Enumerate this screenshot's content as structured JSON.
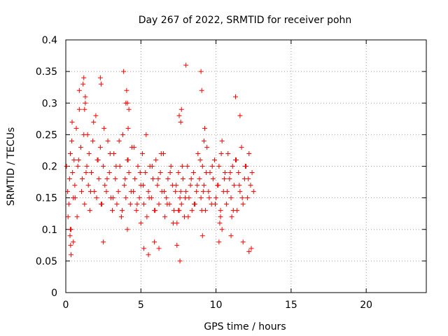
{
  "chart_data": {
    "type": "scatter",
    "title": "Day 267 of 2022, SRMTID for receiver pohn",
    "xlabel": "GPS time / hours",
    "ylabel": "SRMTID / TECUs",
    "xlim": [
      0,
      24
    ],
    "ylim": [
      0,
      0.4
    ],
    "x_ticks": [
      0,
      5,
      10,
      15,
      20
    ],
    "x_tick_labels": [
      "0",
      "5",
      "10",
      "15",
      "20"
    ],
    "y_ticks": [
      0,
      0.05,
      0.1,
      0.15,
      0.2,
      0.25,
      0.3,
      0.35,
      0.4
    ],
    "y_tick_labels": [
      "0",
      "0.05",
      "0.1",
      "0.15",
      "0.2",
      "0.25",
      "0.3",
      "0.35",
      "0.4"
    ],
    "grid": true,
    "marker": "plus",
    "color": "#ff0000",
    "series": [
      {
        "name": "SRMTID",
        "x": [
          0.05,
          0.12,
          0.2,
          0.25,
          0.3,
          0.35,
          0.4,
          0.45,
          0.5,
          0.55,
          0.6,
          0.7,
          0.75,
          0.8,
          0.9,
          1.0,
          1.05,
          1.1,
          1.2,
          1.25,
          1.3,
          1.4,
          1.5,
          1.55,
          1.6,
          1.7,
          1.8,
          1.9,
          2.0,
          2.05,
          2.1,
          2.2,
          2.3,
          2.4,
          2.5,
          2.6,
          2.7,
          2.8,
          2.9,
          3.0,
          3.1,
          3.2,
          3.3,
          3.4,
          3.5,
          3.6,
          3.7,
          3.8,
          3.9,
          4.0,
          4.1,
          4.2,
          4.3,
          4.4,
          4.5,
          4.6,
          4.7,
          4.8,
          4.9,
          5.0,
          5.1,
          5.2,
          5.3,
          5.4,
          5.5,
          5.6,
          5.7,
          5.8,
          5.9,
          6.0,
          6.1,
          6.2,
          6.3,
          6.4,
          6.5,
          6.6,
          6.7,
          6.8,
          6.9,
          7.0,
          7.1,
          7.2,
          7.3,
          7.4,
          7.5,
          7.6,
          7.7,
          7.8,
          7.9,
          8.0,
          8.1,
          8.2,
          8.3,
          8.4,
          8.5,
          8.6,
          8.7,
          8.8,
          8.9,
          9.0,
          9.1,
          9.2,
          9.3,
          9.4,
          9.5,
          9.6,
          9.7,
          9.8,
          9.9,
          10.0,
          10.1,
          10.2,
          10.3,
          10.4,
          10.5,
          10.6,
          10.7,
          10.8,
          10.9,
          11.0,
          11.1,
          11.2,
          11.3,
          11.4,
          11.5,
          11.6,
          11.7,
          11.8,
          11.9,
          12.0,
          12.1,
          12.2,
          12.3,
          12.4,
          12.5,
          0.15,
          0.28,
          0.42,
          0.62,
          0.85,
          1.15,
          1.35,
          1.45,
          1.65,
          1.85,
          2.15,
          2.35,
          2.55,
          2.75,
          2.95,
          3.15,
          3.35,
          3.55,
          3.75,
          3.95,
          4.15,
          4.35,
          4.55,
          4.75,
          4.95,
          5.15,
          5.35,
          5.55,
          5.75,
          5.95,
          6.15,
          6.35,
          6.55,
          6.75,
          6.95,
          7.15,
          7.35,
          7.55,
          7.65,
          7.75,
          7.95,
          8.15,
          8.35,
          8.55,
          8.75,
          8.95,
          9.05,
          9.15,
          9.35,
          9.55,
          9.75,
          9.95,
          10.15,
          10.35,
          10.55,
          10.75,
          10.95,
          11.15,
          11.35,
          11.55,
          11.75,
          11.95,
          12.15,
          12.35,
          0.3,
          0.5,
          1.3,
          2.5,
          3.85,
          4.0,
          4.05,
          4.1,
          5.0,
          7.5,
          7.6,
          7.7,
          8.0,
          9.0,
          9.05,
          9.1,
          10.3,
          10.4,
          11.0,
          11.05,
          11.6,
          11.8,
          12.2,
          0.32,
          0.35,
          5.2,
          5.5,
          5.9,
          6.2,
          7.4,
          7.55,
          7.65,
          10.2,
          10.25,
          0.9,
          1.2,
          1.25,
          2.3,
          2.35,
          4.1,
          4.15,
          4.2,
          9.2,
          9.25,
          11.3
        ],
        "y": [
          0.2,
          0.16,
          0.14,
          0.18,
          0.22,
          0.1,
          0.24,
          0.19,
          0.15,
          0.21,
          0.17,
          0.26,
          0.12,
          0.2,
          0.29,
          0.23,
          0.16,
          0.18,
          0.25,
          0.14,
          0.3,
          0.2,
          0.17,
          0.22,
          0.13,
          0.19,
          0.24,
          0.16,
          0.28,
          0.15,
          0.21,
          0.18,
          0.23,
          0.14,
          0.2,
          0.17,
          0.16,
          0.24,
          0.19,
          0.15,
          0.13,
          0.22,
          0.18,
          0.14,
          0.16,
          0.2,
          0.12,
          0.25,
          0.17,
          0.15,
          0.21,
          0.19,
          0.14,
          0.23,
          0.16,
          0.18,
          0.13,
          0.2,
          0.15,
          0.17,
          0.22,
          0.14,
          0.19,
          0.12,
          0.16,
          0.2,
          0.15,
          0.18,
          0.13,
          0.21,
          0.17,
          0.14,
          0.19,
          0.16,
          0.22,
          0.12,
          0.15,
          0.18,
          0.14,
          0.2,
          0.17,
          0.13,
          0.16,
          0.11,
          0.19,
          0.15,
          0.14,
          0.18,
          0.12,
          0.16,
          0.2,
          0.15,
          0.17,
          0.13,
          0.19,
          0.14,
          0.16,
          0.22,
          0.18,
          0.15,
          0.2,
          0.17,
          0.13,
          0.23,
          0.16,
          0.19,
          0.14,
          0.18,
          0.21,
          0.15,
          0.17,
          0.2,
          0.13,
          0.24,
          0.16,
          0.19,
          0.14,
          0.22,
          0.18,
          0.15,
          0.2,
          0.17,
          0.21,
          0.13,
          0.19,
          0.16,
          0.23,
          0.14,
          0.18,
          0.2,
          0.15,
          0.22,
          0.17,
          0.19,
          0.16,
          0.12,
          0.09,
          0.27,
          0.15,
          0.21,
          0.33,
          0.19,
          0.25,
          0.16,
          0.27,
          0.21,
          0.14,
          0.26,
          0.18,
          0.22,
          0.15,
          0.2,
          0.24,
          0.13,
          0.18,
          0.21,
          0.16,
          0.23,
          0.14,
          0.19,
          0.17,
          0.25,
          0.15,
          0.2,
          0.13,
          0.18,
          0.22,
          0.16,
          0.14,
          0.19,
          0.11,
          0.17,
          0.13,
          0.16,
          0.2,
          0.15,
          0.12,
          0.18,
          0.14,
          0.17,
          0.21,
          0.13,
          0.16,
          0.19,
          0.15,
          0.2,
          0.14,
          0.17,
          0.22,
          0.18,
          0.16,
          0.19,
          0.13,
          0.21,
          0.17,
          0.15,
          0.2,
          0.18,
          0.07,
          0.1,
          0.08,
          0.31,
          0.08,
          0.35,
          0.3,
          0.32,
          0.1,
          0.11,
          0.13,
          0.05,
          0.29,
          0.36,
          0.35,
          0.32,
          0.09,
          0.12,
          0.1,
          0.09,
          0.12,
          0.28,
          0.08,
          0.065,
          0.075,
          0.06,
          0.07,
          0.06,
          0.08,
          0.07,
          0.075,
          0.28,
          0.27,
          0.08,
          0.11,
          0.32,
          0.34,
          0.29,
          0.34,
          0.33,
          0.3,
          0.26,
          0.29,
          0.24,
          0.26,
          0.31
        ]
      }
    ]
  }
}
